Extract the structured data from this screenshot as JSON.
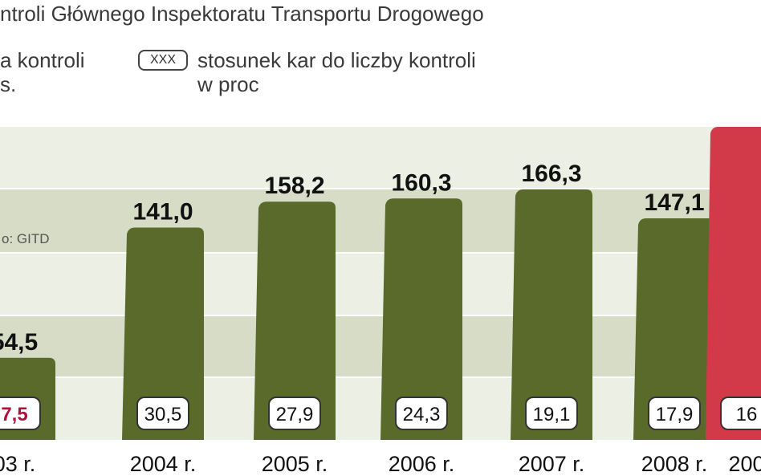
{
  "header": {
    "title": "ntroli Głównego Inspektoratu Transportu Drogowego",
    "legend_a_line1": "a kontroli",
    "legend_a_line2": "s.",
    "legend_b_box": "XXX",
    "legend_b_line1": "stosunek kar do liczby kontroli",
    "legend_b_line2": "w proc"
  },
  "source": "o: GITD",
  "colors": {
    "bar": "#5a6a2a",
    "bar_highlight": "#d23a4a",
    "band_light": "#ecefe4",
    "band_dark": "#d6dcc6",
    "badge_red_text": "#b0103a"
  },
  "chart_data": {
    "type": "bar",
    "categories": [
      "03 r.",
      "2004 r.",
      "2005 r.",
      "2006 r.",
      "2007 r.",
      "2008 r.",
      "200"
    ],
    "values": [
      54.5,
      141.0,
      158.2,
      160.3,
      166.3,
      147.1,
      null
    ],
    "value_labels": [
      "54,5",
      "141,0",
      "158,2",
      "160,3",
      "166,3",
      "147,1",
      ""
    ],
    "ratio_labels": [
      "7,5",
      "30,5",
      "27,9",
      "24,3",
      "19,1",
      "17,9",
      "16"
    ],
    "highlight_index": 6,
    "ylim": [
      0,
      200
    ],
    "grid": true,
    "legend": "top"
  }
}
